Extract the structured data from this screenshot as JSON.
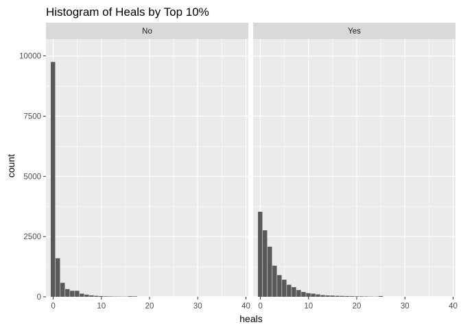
{
  "chart_data": {
    "type": "bar",
    "title": "Histogram of Heals by Top 10%",
    "xlabel": "heals",
    "ylabel": "count",
    "xlim": [
      -1.5,
      40.5
    ],
    "ylim": [
      0,
      10700
    ],
    "x_ticks": [
      0,
      10,
      20,
      30,
      40
    ],
    "y_ticks": [
      0,
      2500,
      5000,
      7500,
      10000
    ],
    "y_tick_labels": [
      "0",
      "2500",
      "5000",
      "7500",
      "10000"
    ],
    "grid": true,
    "bar_color": "#595959",
    "panel_background": "#ebebeb",
    "strip_background": "#d9d9d9",
    "facets": [
      {
        "label": "No",
        "x": [
          0,
          1,
          2,
          3,
          4,
          5,
          6,
          7,
          8,
          9,
          10,
          11,
          12,
          13,
          14,
          15,
          16,
          17
        ],
        "values": [
          9750,
          1600,
          580,
          320,
          250,
          250,
          130,
          90,
          60,
          40,
          30,
          20,
          15,
          12,
          10,
          8,
          25,
          20
        ]
      },
      {
        "label": "Yes",
        "x": [
          0,
          1,
          2,
          3,
          4,
          5,
          6,
          7,
          8,
          9,
          10,
          11,
          12,
          13,
          14,
          15,
          16,
          17,
          18,
          19,
          20,
          21,
          22,
          23,
          24,
          25
        ],
        "values": [
          3530,
          2760,
          2080,
          1290,
          900,
          710,
          500,
          400,
          280,
          200,
          150,
          130,
          100,
          70,
          55,
          50,
          40,
          35,
          30,
          25,
          20,
          18,
          15,
          10,
          8,
          30
        ]
      }
    ]
  }
}
